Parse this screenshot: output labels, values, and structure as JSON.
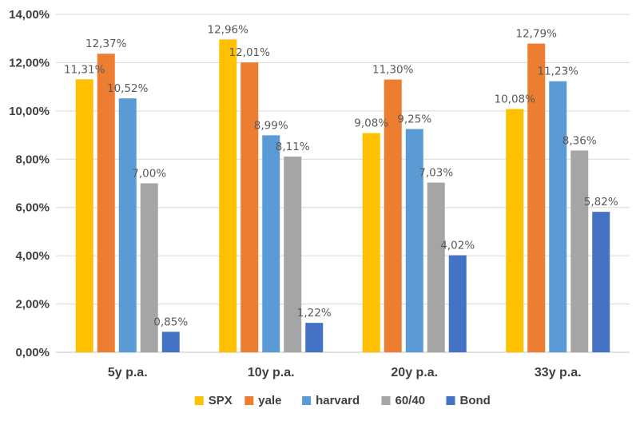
{
  "chart_data": {
    "type": "bar",
    "title": "",
    "xlabel": "",
    "ylabel": "",
    "ylim": [
      0,
      14
    ],
    "yticks": [
      0,
      2,
      4,
      6,
      8,
      10,
      12,
      14
    ],
    "ytick_labels": [
      "0,00%",
      "2,00%",
      "4,00%",
      "6,00%",
      "8,00%",
      "10,00%",
      "12,00%",
      "14,00%"
    ],
    "grid": true,
    "legend_position": "bottom",
    "categories": [
      "5y p.a.",
      "10y p.a.",
      "20y p.a.",
      "33y p.a."
    ],
    "series": [
      {
        "name": "SPX",
        "color": "#FFC000",
        "values": [
          11.31,
          12.96,
          9.08,
          10.08
        ],
        "labels": [
          "11,31%",
          "12,96%",
          "9,08%",
          "10,08%"
        ]
      },
      {
        "name": "yale",
        "color": "#ED7D31",
        "values": [
          12.37,
          12.01,
          11.3,
          12.79
        ],
        "labels": [
          "12,37%",
          "12,01%",
          "11,30%",
          "12,79%"
        ]
      },
      {
        "name": "harvard",
        "color": "#5B9BD5",
        "values": [
          10.52,
          8.99,
          9.25,
          11.23
        ],
        "labels": [
          "10,52%",
          "8,99%",
          "9,25%",
          "11,23%"
        ]
      },
      {
        "name": "60/40",
        "color": "#A5A5A5",
        "values": [
          7.0,
          8.11,
          7.03,
          8.36
        ],
        "labels": [
          "7,00%",
          "8,11%",
          "7,03%",
          "8,36%"
        ]
      },
      {
        "name": "Bond",
        "color": "#4472C4",
        "values": [
          0.85,
          1.22,
          4.02,
          5.82
        ],
        "labels": [
          "0,85%",
          "1,22%",
          "4,02%",
          "5,82%"
        ]
      }
    ]
  }
}
